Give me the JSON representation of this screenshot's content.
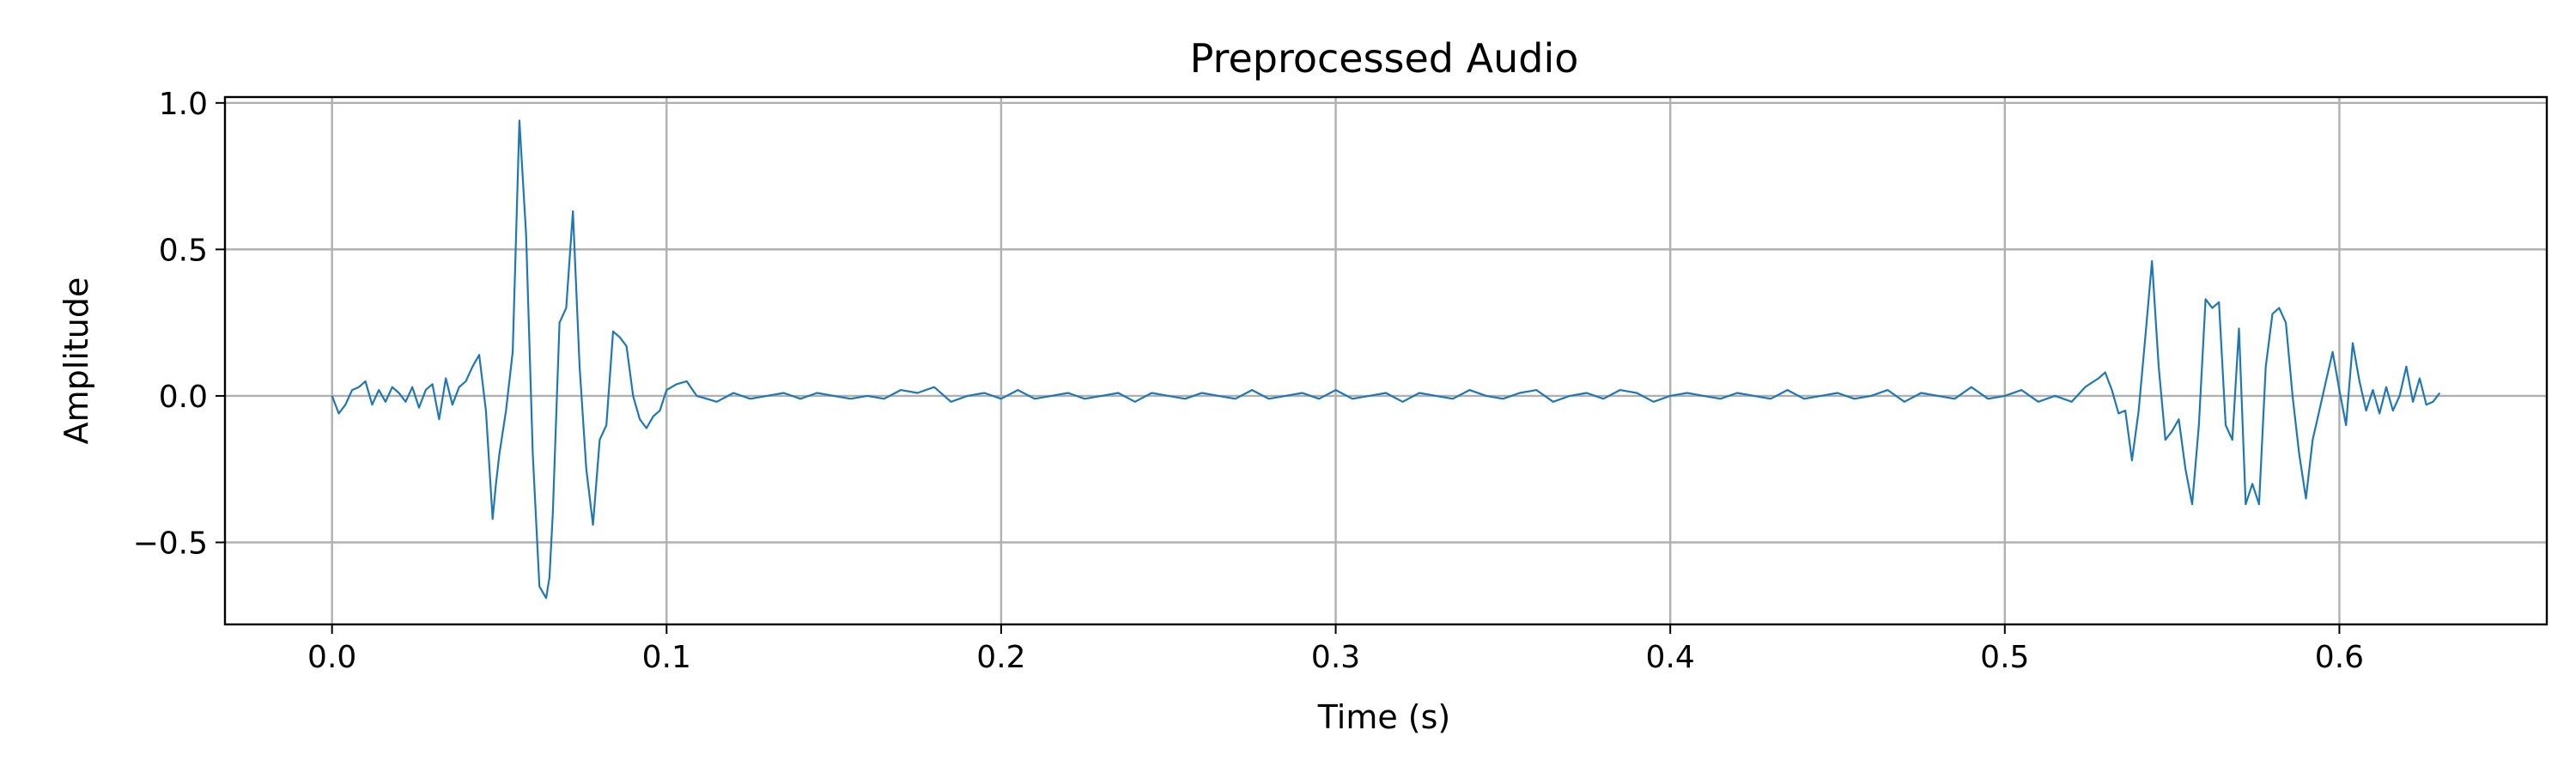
{
  "chart_data": {
    "type": "line",
    "title": "Preprocessed Audio",
    "xlabel": "Time (s)",
    "ylabel": "Amplitude",
    "xlim": [
      -0.032,
      0.662
    ],
    "ylim": [
      -0.78,
      1.02
    ],
    "xticks": [
      0.0,
      0.1,
      0.2,
      0.3,
      0.4,
      0.5,
      0.6
    ],
    "xtick_labels": [
      "0.0",
      "0.1",
      "0.2",
      "0.3",
      "0.4",
      "0.5",
      "0.6"
    ],
    "yticks": [
      -0.5,
      0.0,
      0.5,
      1.0
    ],
    "ytick_labels": [
      "−0.5",
      "0.0",
      "0.5",
      "1.0"
    ],
    "grid": true,
    "line_color": "#1f77b4",
    "series": [
      {
        "x": [
          0.0,
          0.002,
          0.004,
          0.006,
          0.008,
          0.01,
          0.012,
          0.014,
          0.016,
          0.018,
          0.02,
          0.022,
          0.024,
          0.026,
          0.028,
          0.03,
          0.032,
          0.034,
          0.036,
          0.038,
          0.04,
          0.042,
          0.044,
          0.046,
          0.048,
          0.049,
          0.05,
          0.052,
          0.054,
          0.056,
          0.058,
          0.06,
          0.062,
          0.064,
          0.065,
          0.066,
          0.068,
          0.07,
          0.072,
          0.074,
          0.076,
          0.078,
          0.08,
          0.082,
          0.084,
          0.086,
          0.088,
          0.09,
          0.092,
          0.094,
          0.096,
          0.098,
          0.1,
          0.103,
          0.106,
          0.109,
          0.112,
          0.115,
          0.12,
          0.125,
          0.13,
          0.135,
          0.14,
          0.145,
          0.15,
          0.155,
          0.16,
          0.165,
          0.17,
          0.175,
          0.18,
          0.185,
          0.19,
          0.195,
          0.2,
          0.205,
          0.21,
          0.215,
          0.22,
          0.225,
          0.23,
          0.235,
          0.24,
          0.245,
          0.25,
          0.255,
          0.26,
          0.265,
          0.27,
          0.275,
          0.28,
          0.285,
          0.29,
          0.295,
          0.3,
          0.305,
          0.31,
          0.315,
          0.32,
          0.325,
          0.33,
          0.335,
          0.34,
          0.345,
          0.35,
          0.355,
          0.36,
          0.365,
          0.37,
          0.375,
          0.38,
          0.385,
          0.39,
          0.395,
          0.4,
          0.405,
          0.41,
          0.415,
          0.42,
          0.425,
          0.43,
          0.435,
          0.44,
          0.445,
          0.45,
          0.455,
          0.46,
          0.465,
          0.47,
          0.475,
          0.48,
          0.485,
          0.49,
          0.495,
          0.5,
          0.505,
          0.51,
          0.515,
          0.52,
          0.524,
          0.528,
          0.53,
          0.532,
          0.534,
          0.536,
          0.538,
          0.54,
          0.542,
          0.544,
          0.546,
          0.548,
          0.55,
          0.552,
          0.554,
          0.556,
          0.558,
          0.56,
          0.562,
          0.564,
          0.566,
          0.568,
          0.57,
          0.572,
          0.574,
          0.576,
          0.578,
          0.58,
          0.582,
          0.584,
          0.586,
          0.588,
          0.59,
          0.592,
          0.594,
          0.596,
          0.598,
          0.6,
          0.602,
          0.604,
          0.606,
          0.608,
          0.61,
          0.612,
          0.614,
          0.616,
          0.618,
          0.62,
          0.622,
          0.624,
          0.626,
          0.628,
          0.63
        ],
        "y": [
          0.0,
          -0.06,
          -0.03,
          0.02,
          0.03,
          0.05,
          -0.03,
          0.02,
          -0.02,
          0.03,
          0.01,
          -0.02,
          0.03,
          -0.04,
          0.02,
          0.04,
          -0.08,
          0.06,
          -0.03,
          0.03,
          0.05,
          0.1,
          0.14,
          -0.05,
          -0.42,
          -0.3,
          -0.2,
          -0.05,
          0.15,
          0.94,
          0.55,
          -0.2,
          -0.65,
          -0.69,
          -0.62,
          -0.4,
          0.25,
          0.3,
          0.63,
          0.1,
          -0.25,
          -0.44,
          -0.15,
          -0.1,
          0.22,
          0.2,
          0.17,
          0.0,
          -0.08,
          -0.11,
          -0.07,
          -0.05,
          0.02,
          0.04,
          0.05,
          0.0,
          -0.01,
          -0.02,
          0.01,
          -0.01,
          0.0,
          0.01,
          -0.01,
          0.01,
          0.0,
          -0.01,
          0.0,
          -0.01,
          0.02,
          0.01,
          0.03,
          -0.02,
          0.0,
          0.01,
          -0.01,
          0.02,
          -0.01,
          0.0,
          0.01,
          -0.01,
          0.0,
          0.01,
          -0.02,
          0.01,
          0.0,
          -0.01,
          0.01,
          0.0,
          -0.01,
          0.02,
          -0.01,
          0.0,
          0.01,
          -0.01,
          0.02,
          -0.01,
          0.0,
          0.01,
          -0.02,
          0.01,
          0.0,
          -0.01,
          0.02,
          0.0,
          -0.01,
          0.01,
          0.02,
          -0.02,
          0.0,
          0.01,
          -0.01,
          0.02,
          0.01,
          -0.02,
          0.0,
          0.01,
          0.0,
          -0.01,
          0.01,
          0.0,
          -0.01,
          0.02,
          -0.01,
          0.0,
          0.01,
          -0.01,
          0.0,
          0.02,
          -0.02,
          0.01,
          0.0,
          -0.01,
          0.03,
          -0.01,
          0.0,
          0.02,
          -0.02,
          0.0,
          -0.02,
          0.03,
          0.06,
          0.08,
          0.02,
          -0.06,
          -0.05,
          -0.22,
          -0.05,
          0.2,
          0.46,
          0.1,
          -0.15,
          -0.12,
          -0.08,
          -0.25,
          -0.37,
          -0.1,
          0.33,
          0.3,
          0.32,
          -0.1,
          -0.15,
          0.23,
          -0.37,
          -0.3,
          -0.37,
          0.1,
          0.28,
          0.3,
          0.25,
          0.0,
          -0.2,
          -0.35,
          -0.15,
          -0.05,
          0.05,
          0.15,
          0.02,
          -0.1,
          0.18,
          0.05,
          -0.05,
          0.02,
          -0.06,
          0.03,
          -0.05,
          0.0,
          0.1,
          -0.02,
          0.06,
          -0.03,
          -0.02,
          0.01
        ]
      }
    ]
  }
}
